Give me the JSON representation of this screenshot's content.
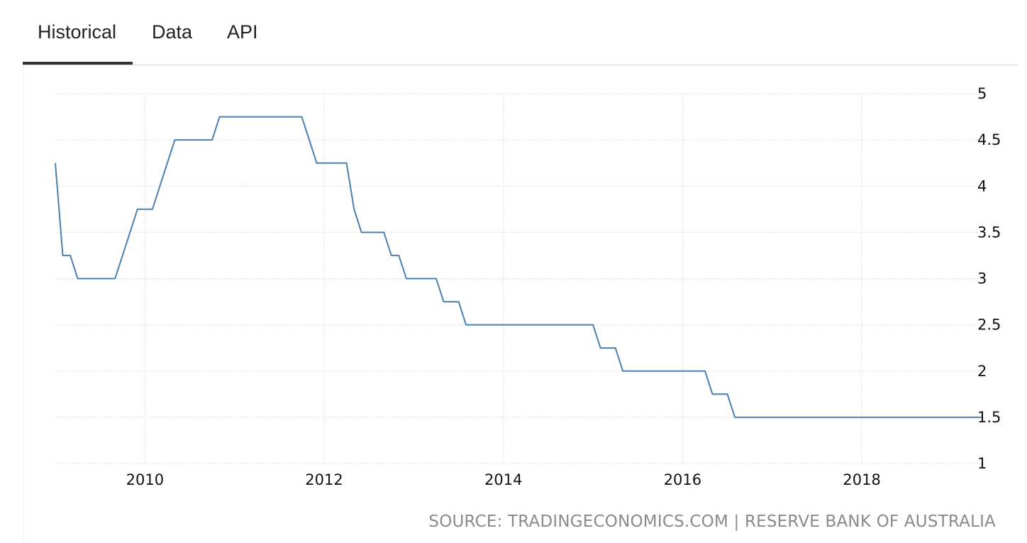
{
  "tabs": [
    {
      "label": "Historical",
      "active": true
    },
    {
      "label": "Data",
      "active": false
    },
    {
      "label": "API",
      "active": false
    }
  ],
  "source_text": "SOURCE: TRADINGECONOMICS.COM | RESERVE BANK OF AUSTRALIA",
  "chart_data": {
    "type": "line",
    "title": "",
    "xlabel": "",
    "ylabel": "",
    "xlim": [
      2009.0,
      2019.4
    ],
    "ylim": [
      1,
      5
    ],
    "x_ticks": [
      "2010",
      "2012",
      "2014",
      "2016",
      "2018"
    ],
    "y_ticks": [
      "1",
      "1.5",
      "2",
      "2.5",
      "3",
      "3.5",
      "4",
      "4.5",
      "5"
    ],
    "y_axis_side": "right",
    "grid": true,
    "line_color": "#4a7fb0",
    "series": [
      {
        "name": "",
        "x": [
          "2009-01-01",
          "2009-02-01",
          "2009-03-01",
          "2009-04-01",
          "2009-05-01",
          "2009-06-01",
          "2009-07-01",
          "2009-08-01",
          "2009-09-01",
          "2009-10-01",
          "2009-11-01",
          "2009-12-01",
          "2010-01-01",
          "2010-02-01",
          "2010-03-01",
          "2010-04-01",
          "2010-05-01",
          "2010-06-01",
          "2010-07-01",
          "2010-08-01",
          "2010-09-01",
          "2010-10-01",
          "2010-11-01",
          "2010-12-01",
          "2011-01-01",
          "2011-02-01",
          "2011-03-01",
          "2011-04-01",
          "2011-05-01",
          "2011-06-01",
          "2011-07-01",
          "2011-08-01",
          "2011-09-01",
          "2011-10-01",
          "2011-11-01",
          "2011-12-01",
          "2012-01-01",
          "2012-02-01",
          "2012-03-01",
          "2012-04-01",
          "2012-05-01",
          "2012-06-01",
          "2012-07-01",
          "2012-08-01",
          "2012-09-01",
          "2012-10-01",
          "2012-11-01",
          "2012-12-01",
          "2013-01-01",
          "2013-02-01",
          "2013-03-01",
          "2013-04-01",
          "2013-05-01",
          "2013-06-01",
          "2013-07-01",
          "2013-08-01",
          "2013-09-01",
          "2013-10-01",
          "2013-11-01",
          "2013-12-01",
          "2014-01-01",
          "2014-06-01",
          "2014-12-01",
          "2015-01-01",
          "2015-02-01",
          "2015-03-01",
          "2015-04-01",
          "2015-05-01",
          "2015-06-01",
          "2015-12-01",
          "2016-01-01",
          "2016-02-01",
          "2016-03-01",
          "2016-04-01",
          "2016-05-01",
          "2016-06-01",
          "2016-07-01",
          "2016-08-01",
          "2016-09-01",
          "2017-06-01",
          "2018-01-01",
          "2018-06-01",
          "2019-01-01",
          "2019-05-01"
        ],
        "y": [
          4.25,
          3.25,
          3.25,
          3.0,
          3.0,
          3.0,
          3.0,
          3.0,
          3.0,
          3.25,
          3.5,
          3.75,
          3.75,
          3.75,
          4.0,
          4.25,
          4.5,
          4.5,
          4.5,
          4.5,
          4.5,
          4.5,
          4.75,
          4.75,
          4.75,
          4.75,
          4.75,
          4.75,
          4.75,
          4.75,
          4.75,
          4.75,
          4.75,
          4.75,
          4.5,
          4.25,
          4.25,
          4.25,
          4.25,
          4.25,
          3.75,
          3.5,
          3.5,
          3.5,
          3.5,
          3.25,
          3.25,
          3.0,
          3.0,
          3.0,
          3.0,
          3.0,
          2.75,
          2.75,
          2.75,
          2.5,
          2.5,
          2.5,
          2.5,
          2.5,
          2.5,
          2.5,
          2.5,
          2.5,
          2.25,
          2.25,
          2.25,
          2.0,
          2.0,
          2.0,
          2.0,
          2.0,
          2.0,
          2.0,
          1.75,
          1.75,
          1.75,
          1.5,
          1.5,
          1.5,
          1.5,
          1.5,
          1.5,
          1.5
        ]
      }
    ]
  }
}
